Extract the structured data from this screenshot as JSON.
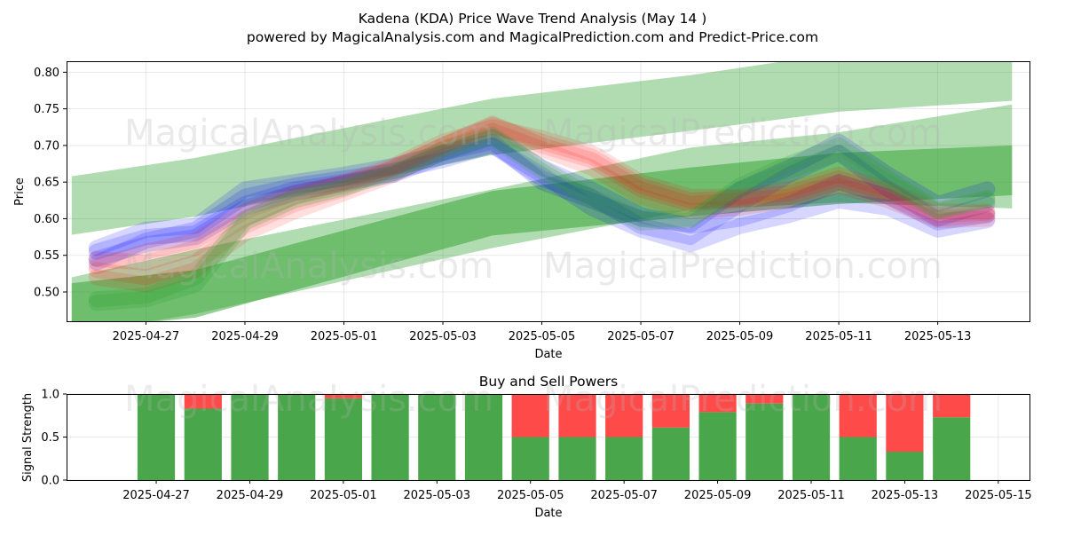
{
  "figure": {
    "title": "Kadena (KDA) Price Wave Trend Analysis (May 14 )",
    "subtitle": "powered by MagicalAnalysis.com and MagicalPrediction.com and Predict-Price.com",
    "watermarks": [
      "MagicalAnalysis.com",
      "MagicalPrediction.com"
    ]
  },
  "chart_data": [
    {
      "type": "line",
      "title": "",
      "xlabel": "Date",
      "ylabel": "Price",
      "x_tick_labels": [
        "2025-04-27",
        "2025-04-29",
        "2025-05-01",
        "2025-05-03",
        "2025-05-05",
        "2025-05-07",
        "2025-05-09",
        "2025-05-11",
        "2025-05-13"
      ],
      "y_ticks": [
        0.5,
        0.55,
        0.6,
        0.65,
        0.7,
        0.75,
        0.8
      ],
      "xlim": [
        "2025-04-25T09:30",
        "2025-05-14T20:30"
      ],
      "ylim": [
        0.46,
        0.815
      ],
      "grid": true,
      "bands": [
        {
          "color": "#2ca02c",
          "opacity": 0.37,
          "upper": [
            [
              "2025-04-25T12:00",
              0.658
            ],
            [
              "2025-04-28T00:00",
              0.683
            ],
            [
              "2025-05-04T00:00",
              0.764
            ],
            [
              "2025-05-08T00:00",
              0.796
            ],
            [
              "2025-05-11T00:00",
              0.826
            ],
            [
              "2025-05-14T12:00",
              0.818
            ]
          ],
          "lower": [
            [
              "2025-04-25T12:00",
              0.578
            ],
            [
              "2025-04-28T00:00",
              0.603
            ],
            [
              "2025-05-04T00:00",
              0.687
            ],
            [
              "2025-05-08T00:00",
              0.72
            ],
            [
              "2025-05-11T00:00",
              0.746
            ],
            [
              "2025-05-14T12:00",
              0.761
            ]
          ]
        },
        {
          "color": "#2ca02c",
          "opacity": 0.37,
          "upper": [
            [
              "2025-04-25T12:00",
              0.52
            ],
            [
              "2025-04-28T00:00",
              0.558
            ],
            [
              "2025-05-04T00:00",
              0.64
            ],
            [
              "2025-05-08T00:00",
              0.697
            ],
            [
              "2025-05-11T00:00",
              0.718
            ],
            [
              "2025-05-14T12:00",
              0.756
            ]
          ],
          "lower": [
            [
              "2025-04-25T12:00",
              0.442
            ],
            [
              "2025-04-28T00:00",
              0.47
            ],
            [
              "2025-05-04T00:00",
              0.56
            ],
            [
              "2025-05-08T00:00",
              0.612
            ],
            [
              "2025-05-11T00:00",
              0.622
            ],
            [
              "2025-05-14T12:00",
              0.614
            ]
          ]
        },
        {
          "color": "#2ca02c",
          "opacity": 0.5,
          "upper": [
            [
              "2025-04-25T12:00",
              0.512
            ],
            [
              "2025-04-28T00:00",
              0.53
            ],
            [
              "2025-05-04T00:00",
              0.638
            ],
            [
              "2025-05-08T00:00",
              0.67
            ],
            [
              "2025-05-11T00:00",
              0.69
            ],
            [
              "2025-05-14T12:00",
              0.7
            ]
          ],
          "lower": [
            [
              "2025-04-25T12:00",
              0.448
            ],
            [
              "2025-04-28T00:00",
              0.465
            ],
            [
              "2025-05-04T00:00",
              0.577
            ],
            [
              "2025-05-08T00:00",
              0.603
            ],
            [
              "2025-05-11T00:00",
              0.62
            ],
            [
              "2025-05-14T12:00",
              0.632
            ]
          ]
        }
      ],
      "series": [
        {
          "color": "#0000ff",
          "opacity": 0.16,
          "x": [
            "2025-04-26",
            "2025-04-27",
            "2025-04-28",
            "2025-04-29",
            "2025-04-30",
            "2025-05-01",
            "2025-05-02",
            "2025-05-03",
            "2025-05-04",
            "2025-05-05",
            "2025-05-06",
            "2025-05-07",
            "2025-05-08",
            "2025-05-09",
            "2025-05-10",
            "2025-05-11",
            "2025-05-12",
            "2025-05-13",
            "2025-05-14"
          ],
          "values": [
            0.56,
            0.585,
            0.59,
            0.64,
            0.65,
            0.66,
            0.672,
            0.69,
            0.705,
            0.65,
            0.625,
            0.6,
            0.592,
            0.64,
            0.67,
            0.705,
            0.66,
            0.62,
            0.64
          ]
        },
        {
          "color": "#0000ff",
          "opacity": 0.16,
          "x": [
            "2025-04-26",
            "2025-04-27",
            "2025-04-28",
            "2025-04-29",
            "2025-04-30",
            "2025-05-01",
            "2025-05-02",
            "2025-05-03",
            "2025-05-04",
            "2025-05-05",
            "2025-05-06",
            "2025-05-07",
            "2025-05-08",
            "2025-05-09",
            "2025-05-10",
            "2025-05-11",
            "2025-05-12",
            "2025-05-13",
            "2025-05-14"
          ],
          "values": [
            0.54,
            0.57,
            0.585,
            0.63,
            0.645,
            0.655,
            0.665,
            0.68,
            0.7,
            0.655,
            0.63,
            0.59,
            0.575,
            0.62,
            0.66,
            0.69,
            0.64,
            0.6,
            0.62
          ]
        },
        {
          "color": "#0000ff",
          "opacity": 0.16,
          "x": [
            "2025-04-26",
            "2025-04-27",
            "2025-04-28",
            "2025-04-29",
            "2025-04-30",
            "2025-05-01",
            "2025-05-02",
            "2025-05-03",
            "2025-05-04",
            "2025-05-05",
            "2025-05-06",
            "2025-05-07",
            "2025-05-08",
            "2025-05-09",
            "2025-05-10",
            "2025-05-11",
            "2025-05-12",
            "2025-05-13",
            "2025-05-14"
          ],
          "values": [
            0.555,
            0.575,
            0.58,
            0.62,
            0.64,
            0.65,
            0.662,
            0.69,
            0.712,
            0.67,
            0.64,
            0.605,
            0.59,
            0.6,
            0.62,
            0.65,
            0.63,
            0.595,
            0.605
          ]
        },
        {
          "color": "#0000ff",
          "opacity": 0.16,
          "x": [
            "2025-04-26",
            "2025-04-27",
            "2025-04-28",
            "2025-04-29",
            "2025-04-30",
            "2025-05-01",
            "2025-05-02",
            "2025-05-03",
            "2025-05-04",
            "2025-05-05",
            "2025-05-06",
            "2025-05-07",
            "2025-05-08",
            "2025-05-09",
            "2025-05-10",
            "2025-05-11",
            "2025-05-12",
            "2025-05-13",
            "2025-05-14"
          ],
          "values": [
            0.545,
            0.565,
            0.575,
            0.615,
            0.635,
            0.648,
            0.66,
            0.685,
            0.7,
            0.66,
            0.615,
            0.585,
            0.565,
            0.59,
            0.605,
            0.625,
            0.615,
            0.585,
            0.598
          ]
        },
        {
          "color": "#ff0000",
          "opacity": 0.13,
          "x": [
            "2025-04-26",
            "2025-04-27",
            "2025-04-28",
            "2025-04-29",
            "2025-04-30",
            "2025-05-01",
            "2025-05-02",
            "2025-05-03",
            "2025-05-04",
            "2025-05-05",
            "2025-05-06",
            "2025-05-07",
            "2025-05-08",
            "2025-05-09",
            "2025-05-10",
            "2025-05-11",
            "2025-05-12",
            "2025-05-13",
            "2025-05-14"
          ],
          "values": [
            0.53,
            0.52,
            0.54,
            0.59,
            0.62,
            0.64,
            0.67,
            0.7,
            0.73,
            0.7,
            0.68,
            0.64,
            0.62,
            0.625,
            0.63,
            0.65,
            0.63,
            0.6,
            0.605
          ]
        },
        {
          "color": "#ff0000",
          "opacity": 0.13,
          "x": [
            "2025-04-26",
            "2025-04-27",
            "2025-04-28",
            "2025-04-29",
            "2025-04-30",
            "2025-05-01",
            "2025-05-02",
            "2025-05-03",
            "2025-05-04",
            "2025-05-05",
            "2025-05-06",
            "2025-05-07",
            "2025-05-08",
            "2025-05-09",
            "2025-05-10",
            "2025-05-11",
            "2025-05-12",
            "2025-05-13",
            "2025-05-14"
          ],
          "values": [
            0.545,
            0.54,
            0.56,
            0.6,
            0.63,
            0.65,
            0.672,
            0.705,
            0.725,
            0.71,
            0.69,
            0.65,
            0.63,
            0.63,
            0.64,
            0.66,
            0.64,
            0.61,
            0.61
          ]
        },
        {
          "color": "#ff0000",
          "opacity": 0.13,
          "x": [
            "2025-04-26",
            "2025-04-27",
            "2025-04-28",
            "2025-04-29",
            "2025-04-30",
            "2025-05-01",
            "2025-05-02",
            "2025-05-03",
            "2025-05-04",
            "2025-05-05",
            "2025-05-06",
            "2025-05-07",
            "2025-05-08",
            "2025-05-09",
            "2025-05-10",
            "2025-05-11",
            "2025-05-12",
            "2025-05-13",
            "2025-05-14"
          ],
          "values": [
            0.52,
            0.51,
            0.53,
            0.58,
            0.61,
            0.635,
            0.66,
            0.695,
            0.72,
            0.695,
            0.67,
            0.63,
            0.61,
            0.615,
            0.625,
            0.645,
            0.625,
            0.598,
            0.6
          ]
        },
        {
          "color": "#ff0000",
          "opacity": 0.13,
          "x": [
            "2025-04-26",
            "2025-04-27",
            "2025-04-28",
            "2025-04-29",
            "2025-04-30",
            "2025-05-01",
            "2025-05-02",
            "2025-05-03",
            "2025-05-04",
            "2025-05-05",
            "2025-05-06",
            "2025-05-07",
            "2025-05-08",
            "2025-05-09",
            "2025-05-10",
            "2025-05-11",
            "2025-05-12",
            "2025-05-13",
            "2025-05-14"
          ],
          "values": [
            0.535,
            0.555,
            0.57,
            0.61,
            0.635,
            0.648,
            0.668,
            0.7,
            0.728,
            0.705,
            0.685,
            0.645,
            0.625,
            0.628,
            0.635,
            0.655,
            0.635,
            0.605,
            0.608
          ]
        },
        {
          "color": "#2ca02c",
          "opacity": 0.22,
          "x": [
            "2025-04-26",
            "2025-04-27",
            "2025-04-28",
            "2025-04-29",
            "2025-04-30",
            "2025-05-01",
            "2025-05-02",
            "2025-05-03",
            "2025-05-04",
            "2025-05-05",
            "2025-05-06",
            "2025-05-07",
            "2025-05-08",
            "2025-05-09",
            "2025-05-10",
            "2025-05-11",
            "2025-05-12",
            "2025-05-13",
            "2025-05-14"
          ],
          "values": [
            0.49,
            0.495,
            0.52,
            0.6,
            0.63,
            0.645,
            0.665,
            0.695,
            0.715,
            0.67,
            0.63,
            0.6,
            0.6,
            0.64,
            0.665,
            0.69,
            0.65,
            0.61,
            0.625
          ]
        },
        {
          "color": "#2ca02c",
          "opacity": 0.22,
          "x": [
            "2025-04-26",
            "2025-04-27",
            "2025-04-28",
            "2025-04-29",
            "2025-04-30",
            "2025-05-01",
            "2025-05-02",
            "2025-05-03",
            "2025-05-04",
            "2025-05-05",
            "2025-05-06",
            "2025-05-07",
            "2025-05-08",
            "2025-05-09",
            "2025-05-10",
            "2025-05-11",
            "2025-05-12",
            "2025-05-13",
            "2025-05-14"
          ],
          "values": [
            0.485,
            0.49,
            0.51,
            0.595,
            0.625,
            0.642,
            0.662,
            0.69,
            0.71,
            0.665,
            0.625,
            0.595,
            0.598,
            0.645,
            0.675,
            0.7,
            0.655,
            0.612,
            0.628
          ]
        }
      ]
    },
    {
      "type": "bar",
      "title": "Buy and Sell Powers",
      "xlabel": "Date",
      "ylabel": "Signal Strength",
      "x_tick_labels": [
        "2025-04-27",
        "2025-04-29",
        "2025-05-01",
        "2025-05-03",
        "2025-05-05",
        "2025-05-07",
        "2025-05-09",
        "2025-05-11",
        "2025-05-13",
        "2025-05-15"
      ],
      "y_ticks": [
        0.0,
        0.5,
        1.0
      ],
      "xlim": [
        "2025-04-25T02:00",
        "2025-05-15T16:00"
      ],
      "ylim": [
        0.0,
        1.0
      ],
      "grid": true,
      "categories": [
        "2025-04-27",
        "2025-04-28",
        "2025-04-29",
        "2025-04-30",
        "2025-05-01",
        "2025-05-02",
        "2025-05-03",
        "2025-05-04",
        "2025-05-05",
        "2025-05-06",
        "2025-05-07",
        "2025-05-08",
        "2025-05-09",
        "2025-05-10",
        "2025-05-11",
        "2025-05-12",
        "2025-05-13",
        "2025-05-14"
      ],
      "series": [
        {
          "color": "#4aa64a",
          "values": [
            1.0,
            0.83,
            1.0,
            1.0,
            0.95,
            1.0,
            1.0,
            1.0,
            0.5,
            0.5,
            0.5,
            0.61,
            0.79,
            0.89,
            1.0,
            0.5,
            0.33,
            0.73
          ]
        },
        {
          "color": "#ff4a4a",
          "values": [
            0.0,
            0.17,
            0.0,
            0.0,
            0.05,
            0.0,
            0.0,
            0.0,
            0.5,
            0.5,
            0.5,
            0.39,
            0.21,
            0.11,
            0.0,
            0.5,
            0.67,
            0.27
          ]
        }
      ]
    }
  ]
}
